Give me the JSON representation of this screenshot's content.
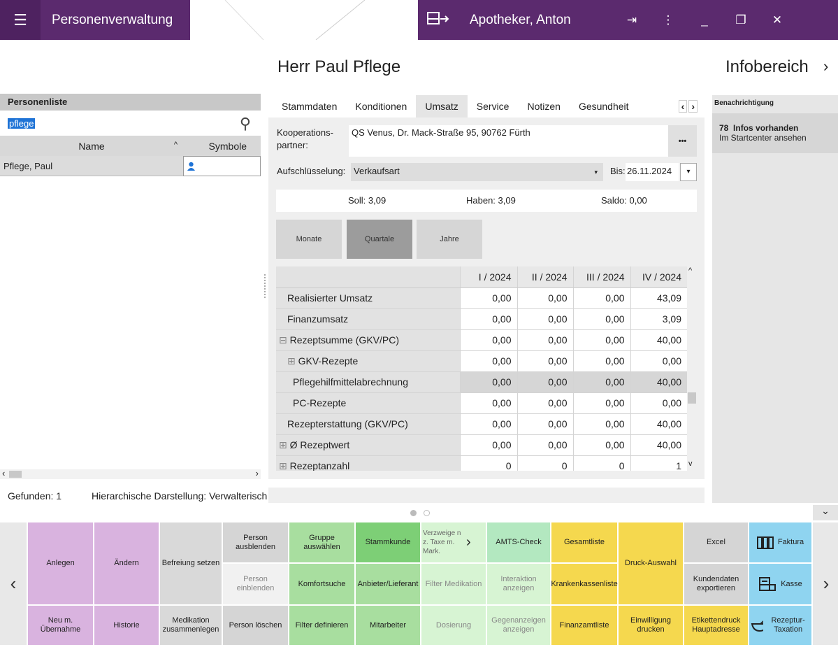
{
  "topbar": {
    "app_title": "Personenverwaltung",
    "user": "Apotheker, Anton",
    "menu_icon": "☰",
    "logout_icon": "⇥",
    "more_icon": "⋮",
    "minimize_icon": "_",
    "restore_icon": "❐",
    "close_icon": "✕"
  },
  "person_title": "Herr Paul Pflege",
  "info_title": "Infobereich",
  "personenliste": {
    "header": "Personenliste",
    "search_value": "pflege",
    "col_name": "Name",
    "col_symbole": "Symbole",
    "rows": [
      {
        "name": "Pflege, Paul"
      }
    ]
  },
  "status": {
    "found": "Gefunden: 1",
    "hierarchy": "Hierarchische Darstellung: Verwalterisch"
  },
  "tabs": [
    "Stammdaten",
    "Konditionen",
    "Umsatz",
    "Service",
    "Notizen",
    "Gesundheit"
  ],
  "umsatz": {
    "kooperations_label": "Kooperations-partner:",
    "kooperations_value": "QS Venus, Dr. Mack-Straße 95, 90762 Fürth",
    "aufschl_label": "Aufschlüsselung:",
    "aufschl_value": "Verkaufsart",
    "bis_label": "Bis:",
    "bis_value": "26.11.2024",
    "soll": "Soll: 3,09",
    "haben": "Haben: 3,09",
    "saldo": "Saldo: 0,00",
    "more_btn": "•••",
    "btn_monate": "Monate",
    "btn_quartale": "Quartale",
    "btn_jahre": "Jahre"
  },
  "table": {
    "columns": [
      "I / 2024",
      "II / 2024",
      "III / 2024",
      "IV / 2024"
    ],
    "rows": [
      {
        "label": "Realisierter Umsatz",
        "prefix": "",
        "values": [
          "0,00",
          "0,00",
          "0,00",
          "43,09"
        ]
      },
      {
        "label": "Finanzumsatz",
        "prefix": "",
        "values": [
          "0,00",
          "0,00",
          "0,00",
          "3,09"
        ]
      },
      {
        "label": "Rezeptsumme (GKV/PC)",
        "prefix": "⊟ ",
        "values": [
          "0,00",
          "0,00",
          "0,00",
          "40,00"
        ]
      },
      {
        "label": "GKV-Rezepte",
        "prefix": "⊞ ",
        "values": [
          "0,00",
          "0,00",
          "0,00",
          "0,00"
        ]
      },
      {
        "label": "Pflegehilfmittelabrechnung",
        "prefix": "",
        "values": [
          "0,00",
          "0,00",
          "0,00",
          "40,00"
        ]
      },
      {
        "label": "PC-Rezepte",
        "prefix": "",
        "values": [
          "0,00",
          "0,00",
          "0,00",
          "0,00"
        ]
      },
      {
        "label": "Rezepterstattung (GKV/PC)",
        "prefix": "",
        "values": [
          "0,00",
          "0,00",
          "0,00",
          "40,00"
        ]
      },
      {
        "label": "Ø Rezeptwert",
        "prefix": "⊞ ",
        "values": [
          "0,00",
          "0,00",
          "0,00",
          "40,00"
        ]
      },
      {
        "label": "Rezeptanzahl",
        "prefix": "⊞ ",
        "values": [
          "0",
          "0",
          "0",
          "1"
        ]
      }
    ]
  },
  "info": {
    "section": "Benachrichtigung",
    "count": "78",
    "count_text": "Infos vorhanden",
    "link": "Im Startcenter ansehen"
  },
  "toolbar": {
    "anlegen": "Anlegen",
    "aendern": "Ändern",
    "befreiung": "Befreiung setzen",
    "person_ausblenden": "Person ausblenden",
    "gruppe": "Gruppe auswählen",
    "stammkunde": "Stammkunde",
    "verzweigen": "Verzweige n z. Taxe m. Mark.",
    "amts": "AMTS-Check",
    "gesamtliste": "Gesamtliste",
    "druck": "Druck-Auswahl",
    "excel": "Excel",
    "faktura": "Faktura",
    "person_einblenden": "Person einblenden",
    "komfortsuche": "Komfortsuche",
    "anbieter": "Anbieter/Lieferant",
    "filter_med": "Filter Medikation",
    "interaktion": "Interaktion anzeigen",
    "krankenkassen": "Krankenkassenliste",
    "kundendaten": "Kundendaten exportieren",
    "kasse": "Kasse",
    "neu": "Neu m. Übernahme",
    "historie": "Historie",
    "medikation": "Medikation zusammenlegen",
    "person_loeschen": "Person löschen",
    "filter_def": "Filter definieren",
    "mitarbeiter": "Mitarbeiter",
    "dosierung": "Dosierung",
    "gegenanzeigen": "Gegenanzeigen anzeigen",
    "finanzamt": "Finanzamtliste",
    "einwilligung": "Einwilligung drucken",
    "etikettendruck": "Etikettendruck Hauptadresse",
    "rezeptur": "Rezeptur-Taxation"
  }
}
